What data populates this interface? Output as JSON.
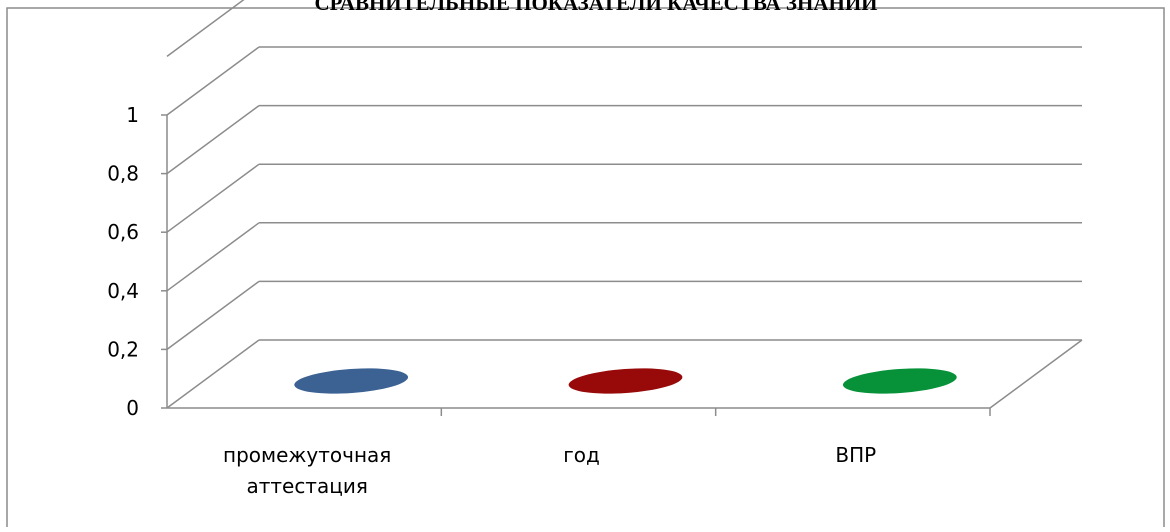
{
  "chart_data": {
    "type": "bar",
    "style": "3d-column",
    "title": "СРАВНИТЕЛЬНЫЕ ПОКАЗАТЕЛИ КАЧЕСТВА ЗНАНИЙ",
    "categories": [
      "промежуточная аттестация",
      "год",
      "ВПР"
    ],
    "category_label_lines": [
      [
        "промежуточная",
        "аттестация"
      ],
      [
        "год"
      ],
      [
        "ВПР"
      ]
    ],
    "values": [
      0,
      0,
      0
    ],
    "colors": [
      "#3b6293",
      "#980a0a",
      "#07923a"
    ],
    "ylim": [
      0,
      1.2
    ],
    "ytick_values": [
      0,
      0.2,
      0.4,
      0.6,
      0.8,
      1
    ],
    "ytick_labels": [
      "0",
      "0,2",
      "0,4",
      "0,6",
      "0,8",
      "1"
    ],
    "grid": true,
    "legend": "none",
    "xlabel": "",
    "ylabel": ""
  }
}
